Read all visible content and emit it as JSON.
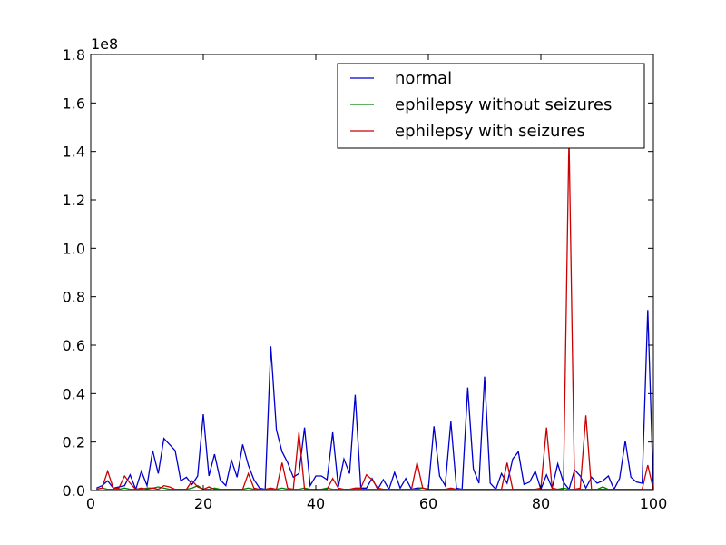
{
  "chart_data": {
    "type": "line",
    "title": "",
    "xlabel": "",
    "ylabel": "",
    "y_multiplier_label": "1e8",
    "xlim": [
      0,
      100
    ],
    "ylim": [
      0,
      1.8
    ],
    "x_ticks": [
      "0",
      "20",
      "40",
      "60",
      "80",
      "100"
    ],
    "y_ticks": [
      "0.0",
      "0.2",
      "0.4",
      "0.6",
      "0.8",
      "1.0",
      "1.2",
      "1.4",
      "1.6",
      "1.8"
    ],
    "legend_position": "top-right",
    "grid": false,
    "x": [
      1,
      2,
      3,
      4,
      5,
      6,
      7,
      8,
      9,
      10,
      11,
      12,
      13,
      14,
      15,
      16,
      17,
      18,
      19,
      20,
      21,
      22,
      23,
      24,
      25,
      26,
      27,
      28,
      29,
      30,
      31,
      32,
      33,
      34,
      35,
      36,
      37,
      38,
      39,
      40,
      41,
      42,
      43,
      44,
      45,
      46,
      47,
      48,
      49,
      50,
      51,
      52,
      53,
      54,
      55,
      56,
      57,
      58,
      59,
      60,
      61,
      62,
      63,
      64,
      65,
      66,
      67,
      68,
      69,
      70,
      71,
      72,
      73,
      74,
      75,
      76,
      77,
      78,
      79,
      80,
      81,
      82,
      83,
      84,
      85,
      86,
      87,
      88,
      89,
      90,
      91,
      92,
      93,
      94,
      95,
      96,
      97,
      98,
      99,
      100
    ],
    "series": [
      {
        "name": "normal",
        "color": "#0000cc",
        "values": [
          0.01,
          0.02,
          0.04,
          0.01,
          0.015,
          0.02,
          0.065,
          0.005,
          0.08,
          0.02,
          0.165,
          0.07,
          0.215,
          0.19,
          0.165,
          0.04,
          0.055,
          0.025,
          0.06,
          0.315,
          0.06,
          0.15,
          0.045,
          0.02,
          0.125,
          0.055,
          0.19,
          0.105,
          0.045,
          0.01,
          0.005,
          0.595,
          0.25,
          0.16,
          0.115,
          0.055,
          0.07,
          0.26,
          0.02,
          0.06,
          0.06,
          0.045,
          0.24,
          0.015,
          0.13,
          0.07,
          0.395,
          0.01,
          0.01,
          0.05,
          0.005,
          0.045,
          0.005,
          0.075,
          0.01,
          0.05,
          0.005,
          0.01,
          0.01,
          0.005,
          0.265,
          0.06,
          0.02,
          0.285,
          0.01,
          0.005,
          0.425,
          0.09,
          0.03,
          0.47,
          0.03,
          0.005,
          0.07,
          0.03,
          0.13,
          0.16,
          0.025,
          0.035,
          0.08,
          0.005,
          0.065,
          0.01,
          0.11,
          0.035,
          0.005,
          0.085,
          0.06,
          0.01,
          0.055,
          0.03,
          0.04,
          0.06,
          0.005,
          0.05,
          0.205,
          0.055,
          0.035,
          0.03,
          0.745,
          0.005
        ]
      },
      {
        "name": "ephilepsy without seizures",
        "color": "#008000",
        "values": [
          0.005,
          0.01,
          0.005,
          0.005,
          0.005,
          0.01,
          0.005,
          0.005,
          0.005,
          0.01,
          0.01,
          0.015,
          0.01,
          0.005,
          0.005,
          0.005,
          0.005,
          0.01,
          0.02,
          0.005,
          0.005,
          0.01,
          0.005,
          0.005,
          0.005,
          0.005,
          0.005,
          0.01,
          0.005,
          0.005,
          0.005,
          0.005,
          0.005,
          0.01,
          0.005,
          0.005,
          0.005,
          0.01,
          0.005,
          0.005,
          0.005,
          0.01,
          0.005,
          0.005,
          0.005,
          0.005,
          0.005,
          0.005,
          0.005,
          0.005,
          0.005,
          0.005,
          0.005,
          0.005,
          0.005,
          0.005,
          0.005,
          0.005,
          0.01,
          0.005,
          0.005,
          0.005,
          0.005,
          0.005,
          0.005,
          0.005,
          0.005,
          0.005,
          0.005,
          0.005,
          0.005,
          0.005,
          0.005,
          0.005,
          0.005,
          0.005,
          0.005,
          0.005,
          0.005,
          0.005,
          0.005,
          0.005,
          0.005,
          0.01,
          0.005,
          0.005,
          0.005,
          0.005,
          0.005,
          0.005,
          0.015,
          0.005,
          0.005,
          0.005,
          0.005,
          0.005,
          0.005,
          0.005,
          0.005,
          0.005
        ]
      },
      {
        "name": "ephilepsy with seizures",
        "color": "#cc0000",
        "values": [
          0.005,
          0.01,
          0.08,
          0.01,
          0.01,
          0.06,
          0.03,
          0.005,
          0.01,
          0.005,
          0.01,
          0.005,
          0.02,
          0.015,
          0.005,
          0.005,
          0.005,
          0.04,
          0.015,
          0.005,
          0.015,
          0.005,
          0.005,
          0.005,
          0.005,
          0.005,
          0.005,
          0.07,
          0.01,
          0.005,
          0.005,
          0.01,
          0.005,
          0.115,
          0.01,
          0.005,
          0.24,
          0.005,
          0.005,
          0.005,
          0.005,
          0.005,
          0.05,
          0.01,
          0.005,
          0.005,
          0.01,
          0.01,
          0.065,
          0.045,
          0.01,
          0.005,
          0.005,
          0.005,
          0.005,
          0.005,
          0.005,
          0.115,
          0.01,
          0.005,
          0.005,
          0.005,
          0.005,
          0.01,
          0.005,
          0.005,
          0.005,
          0.005,
          0.005,
          0.005,
          0.005,
          0.005,
          0.005,
          0.115,
          0.005,
          0.005,
          0.005,
          0.005,
          0.005,
          0.01,
          0.26,
          0.01,
          0.005,
          0.005,
          1.46,
          0.005,
          0.01,
          0.31,
          0.005,
          0.005,
          0.005,
          0.005,
          0.005,
          0.005,
          0.005,
          0.005,
          0.005,
          0.005,
          0.105,
          0.005
        ]
      }
    ]
  }
}
